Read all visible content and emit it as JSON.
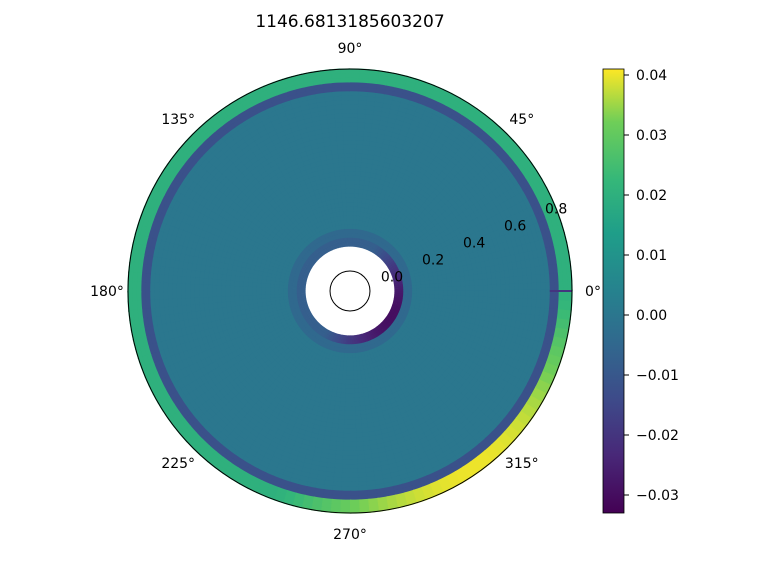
{
  "chart_data": {
    "type": "heatmap",
    "projection": "polar",
    "title": "1146.6813185603207",
    "theta_tick_labels": [
      "0°",
      "45°",
      "90°",
      "135°",
      "180°",
      "225°",
      "270°",
      "315°"
    ],
    "theta_ticks_deg": [
      0,
      45,
      90,
      135,
      180,
      225,
      270,
      315
    ],
    "r_tick_labels": [
      "0.0",
      "0.2",
      "0.4",
      "0.6",
      "0.8"
    ],
    "r_ticks": [
      0.0,
      0.2,
      0.4,
      0.6,
      0.8
    ],
    "rlim": [
      0.0,
      1.0
    ],
    "r_label_angle_deg": 22.5,
    "inner_hole_radius": 0.2,
    "colorbar": {
      "colormap": "viridis",
      "vmin": -0.033,
      "vmax": 0.041,
      "tick_labels": [
        "0.04",
        "0.03",
        "0.02",
        "0.01",
        "0.00",
        "−0.01",
        "−0.02",
        "−0.03"
      ],
      "tick_values": [
        0.04,
        0.03,
        0.02,
        0.01,
        0.0,
        -0.01,
        -0.02,
        -0.03
      ]
    },
    "field_features": [
      {
        "feature": "background",
        "r_range": [
          0.25,
          0.88
        ],
        "value": 0.0
      },
      {
        "feature": "inner_ring_dark",
        "r_range": [
          0.2,
          0.24
        ],
        "value": -0.03
      },
      {
        "feature": "inner_ring_glow",
        "r_range": [
          0.24,
          0.28
        ],
        "value": -0.008
      },
      {
        "feature": "outer_dark_band",
        "r_range": [
          0.9,
          0.95
        ],
        "value": -0.012
      },
      {
        "feature": "outer_bright_band",
        "r_range": [
          0.95,
          1.0
        ],
        "value": 0.02
      },
      {
        "feature": "bright_arc",
        "theta_range_deg": [
          270,
          360
        ],
        "value": 0.04
      },
      {
        "feature": "wedge_edge",
        "theta_deg": 0,
        "value": -0.02
      }
    ]
  }
}
